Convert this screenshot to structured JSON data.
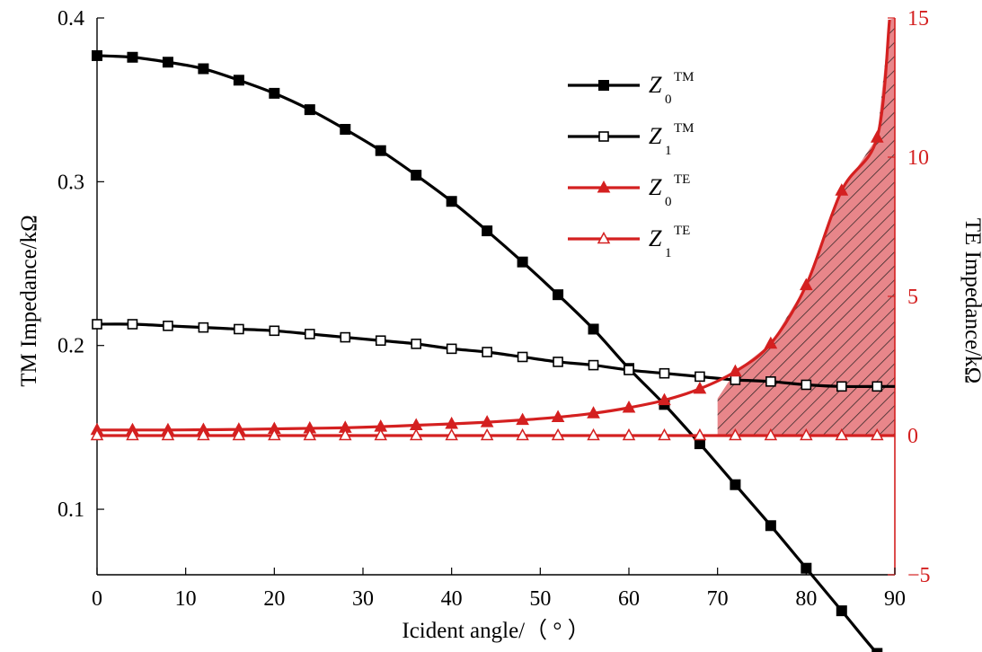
{
  "chart_data": {
    "type": "line",
    "xlabel": "Icident angle/（ ° ）",
    "ylabel_left": "TM Impedance/kΩ",
    "ylabel_right": "TE Impedance/kΩ",
    "xlim": [
      0,
      90
    ],
    "ylim_left": [
      0.06,
      0.4
    ],
    "ylim_right": [
      -5,
      15
    ],
    "x_ticks": [
      0,
      10,
      20,
      30,
      40,
      50,
      60,
      70,
      80,
      90
    ],
    "x_tick_labels": [
      "0",
      "10",
      "20",
      "30",
      "40",
      "50",
      "60",
      "70",
      "80",
      "90"
    ],
    "y_left_ticks": [
      0.1,
      0.2,
      0.3,
      0.4
    ],
    "y_left_tick_labels": [
      "0.1",
      "0.2",
      "0.3",
      "0.4"
    ],
    "y_right_ticks": [
      -5,
      0,
      5,
      10,
      15
    ],
    "y_right_tick_labels": [
      "−5",
      "0",
      "5",
      "10",
      "15"
    ],
    "grid": false,
    "legend_position": "upper-right",
    "colors": {
      "tm": "#000000",
      "te": "#d42020",
      "fill": "#e8868a"
    },
    "series": [
      {
        "name": "Z0TM",
        "legend_main": "Z",
        "legend_sub": "0",
        "legend_sup": "TM",
        "axis": "left",
        "marker": "filled-square",
        "x": [
          0,
          4,
          8,
          12,
          16,
          20,
          24,
          28,
          32,
          36,
          40,
          44,
          48,
          52,
          56,
          60,
          64,
          68,
          72,
          76,
          80,
          84,
          88
        ],
        "values": [
          0.377,
          0.376,
          0.373,
          0.369,
          0.362,
          0.354,
          0.344,
          0.332,
          0.319,
          0.304,
          0.288,
          0.27,
          0.251,
          0.231,
          0.21,
          0.186,
          0.164,
          0.14,
          0.115,
          0.09,
          0.064,
          0.038,
          0.012
        ]
      },
      {
        "name": "Z1TM",
        "legend_main": "Z",
        "legend_sub": "1",
        "legend_sup": "TM",
        "axis": "left",
        "marker": "open-square",
        "x": [
          0,
          4,
          8,
          12,
          16,
          20,
          24,
          28,
          32,
          36,
          40,
          44,
          48,
          52,
          56,
          60,
          64,
          68,
          72,
          76,
          80,
          84,
          88
        ],
        "values": [
          0.213,
          0.213,
          0.212,
          0.211,
          0.21,
          0.209,
          0.207,
          0.205,
          0.203,
          0.201,
          0.198,
          0.196,
          0.193,
          0.19,
          0.188,
          0.185,
          0.183,
          0.181,
          0.179,
          0.178,
          0.176,
          0.175,
          0.175
        ]
      },
      {
        "name": "Z0TE",
        "legend_main": "Z",
        "legend_sub": "0",
        "legend_sup": "TE",
        "axis": "right",
        "marker": "filled-triangle",
        "x": [
          0,
          4,
          8,
          12,
          16,
          20,
          24,
          28,
          32,
          36,
          40,
          44,
          48,
          52,
          56,
          60,
          64,
          68,
          72,
          76,
          80,
          84,
          88
        ],
        "values": [
          0.2,
          0.2,
          0.2,
          0.21,
          0.22,
          0.24,
          0.26,
          0.28,
          0.32,
          0.37,
          0.42,
          0.48,
          0.56,
          0.66,
          0.8,
          1.0,
          1.27,
          1.68,
          2.3,
          3.3,
          5.4,
          8.8,
          10.7
        ]
      },
      {
        "name": "Z1TE",
        "legend_main": "Z",
        "legend_sub": "1",
        "legend_sup": "TE",
        "axis": "right",
        "marker": "open-triangle",
        "x": [
          0,
          4,
          8,
          12,
          16,
          20,
          24,
          28,
          32,
          36,
          40,
          44,
          48,
          52,
          56,
          60,
          64,
          68,
          72,
          76,
          80,
          84,
          88
        ],
        "values": [
          0.0,
          0.0,
          0.0,
          0.0,
          0.0,
          0.0,
          0.0,
          0.0,
          0.0,
          0.0,
          0.0,
          0.0,
          0.0,
          0.0,
          0.0,
          0.0,
          0.0,
          0.0,
          0.0,
          0.0,
          0.0,
          0.0,
          0.0
        ]
      }
    ],
    "shaded_region": {
      "axis": "right",
      "x_start": 70,
      "x_end": 90,
      "between": [
        "Z1TE",
        "Z0TE"
      ],
      "pattern": "diagonal-hatch"
    }
  }
}
